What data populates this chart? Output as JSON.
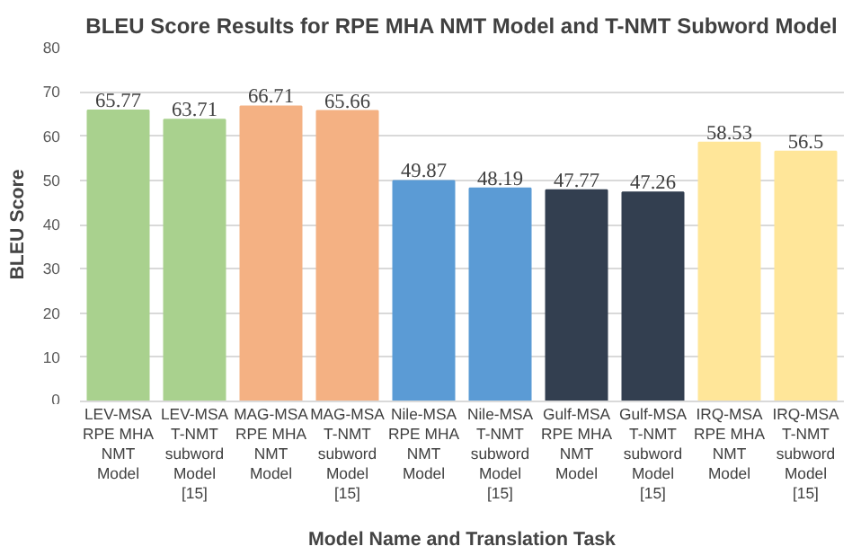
{
  "chart_data": {
    "type": "bar",
    "title": "BLEU Score Results for RPE MHA NMT Model and T-NMT Subword Model",
    "xlabel": "Model Name and Translation Task",
    "ylabel": "BLEU Score",
    "categories": [
      "LEV-MSA\nRPE MHA NMT Model",
      "LEV-MSA\nT-NMT subword Model [15]",
      "MAG-MSA\nRPE MHA NMT Model",
      "MAG-MSA\nT-NMT subword Model [15]",
      "Nile-MSA\nRPE MHA NMT Model",
      "Nile-MSA\nT-NMT subword Model [15]",
      "Gulf-MSA\nRPE MHA NMT Model",
      "Gulf-MSA\nT-NMT subword Model [15]",
      "IRQ-MSA\nRPE MHA NMT Model",
      "IRQ-MSA\nT-NMT subword Model [15]"
    ],
    "values": [
      65.77,
      63.71,
      66.71,
      65.66,
      49.87,
      48.19,
      47.77,
      47.26,
      58.53,
      56.5
    ],
    "colors": [
      "#a9d18e",
      "#a9d18e",
      "#f4b183",
      "#f4b183",
      "#5b9bd5",
      "#5b9bd5",
      "#333f50",
      "#333f50",
      "#ffe699",
      "#ffe699"
    ],
    "ylim": [
      0,
      80
    ],
    "yticks": [
      0,
      10,
      20,
      30,
      40,
      50,
      60,
      70,
      80
    ],
    "grid": "y",
    "data_labels": true
  }
}
